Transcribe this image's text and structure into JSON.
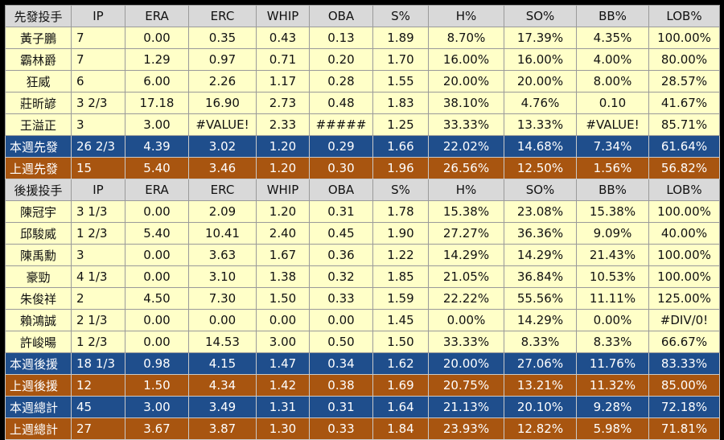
{
  "headers": [
    "IP",
    "ERA",
    "ERC",
    "WHIP",
    "OBA",
    "S%",
    "H%",
    "SO%",
    "BB%",
    "LOB%"
  ],
  "sections": [
    {
      "title": "先發投手",
      "players": [
        {
          "name": "黃子鵬",
          "stats": [
            "7",
            "0.00",
            "0.35",
            "0.43",
            "0.13",
            "1.89",
            "8.70%",
            "17.39%",
            "4.35%",
            "100.00%"
          ]
        },
        {
          "name": "霸林爵",
          "stats": [
            "7",
            "1.29",
            "0.97",
            "0.71",
            "0.20",
            "1.70",
            "16.00%",
            "16.00%",
            "4.00%",
            "80.00%"
          ]
        },
        {
          "name": "狂威",
          "stats": [
            "6",
            "6.00",
            "2.26",
            "1.17",
            "0.28",
            "1.55",
            "20.00%",
            "20.00%",
            "8.00%",
            "28.57%"
          ]
        },
        {
          "name": "莊昕諺",
          "stats": [
            "3 2/3",
            "17.18",
            "16.90",
            "2.73",
            "0.48",
            "1.83",
            "38.10%",
            "4.76%",
            "0.10",
            "41.67%"
          ]
        },
        {
          "name": "王溢正",
          "stats": [
            "3",
            "3.00",
            "#VALUE!",
            "2.33",
            "#####",
            "1.25",
            "33.33%",
            "13.33%",
            "#VALUE!",
            "85.71%"
          ]
        }
      ],
      "totals": [
        {
          "kind": "this",
          "name": "本週先發",
          "stats": [
            "26 2/3",
            "4.39",
            "3.02",
            "1.20",
            "0.29",
            "1.66",
            "22.02%",
            "14.68%",
            "7.34%",
            "61.64%"
          ]
        },
        {
          "kind": "last",
          "name": "上週先發",
          "stats": [
            "15",
            "5.40",
            "3.46",
            "1.20",
            "0.30",
            "1.96",
            "26.56%",
            "12.50%",
            "1.56%",
            "56.82%"
          ]
        }
      ]
    },
    {
      "title": "後援投手",
      "players": [
        {
          "name": "陳冠宇",
          "stats": [
            "3 1/3",
            "0.00",
            "2.09",
            "1.20",
            "0.31",
            "1.78",
            "15.38%",
            "23.08%",
            "15.38%",
            "100.00%"
          ]
        },
        {
          "name": "邱駿威",
          "stats": [
            "1 2/3",
            "5.40",
            "10.41",
            "2.40",
            "0.45",
            "1.90",
            "27.27%",
            "36.36%",
            "9.09%",
            "40.00%"
          ]
        },
        {
          "name": "陳禹勳",
          "stats": [
            "3",
            "0.00",
            "3.63",
            "1.67",
            "0.36",
            "1.22",
            "14.29%",
            "14.29%",
            "21.43%",
            "100.00%"
          ]
        },
        {
          "name": "豪勁",
          "stats": [
            "4 1/3",
            "0.00",
            "3.10",
            "1.38",
            "0.32",
            "1.85",
            "21.05%",
            "36.84%",
            "10.53%",
            "100.00%"
          ]
        },
        {
          "name": "朱俊祥",
          "stats": [
            "2",
            "4.50",
            "7.30",
            "1.50",
            "0.33",
            "1.59",
            "22.22%",
            "55.56%",
            "11.11%",
            "125.00%"
          ]
        },
        {
          "name": "賴鴻誠",
          "stats": [
            "2 1/3",
            "0.00",
            "0.00",
            "0.00",
            "0.00",
            "1.45",
            "0.00%",
            "14.29%",
            "0.00%",
            "#DIV/0!"
          ]
        },
        {
          "name": "許峻暘",
          "stats": [
            "1 2/3",
            "0.00",
            "14.53",
            "3.00",
            "0.50",
            "1.50",
            "33.33%",
            "8.33%",
            "8.33%",
            "66.67%"
          ]
        }
      ],
      "totals": [
        {
          "kind": "this",
          "name": "本週後援",
          "stats": [
            "18 1/3",
            "0.98",
            "4.15",
            "1.47",
            "0.34",
            "1.62",
            "20.00%",
            "27.06%",
            "11.76%",
            "83.33%"
          ]
        },
        {
          "kind": "last",
          "name": "上週後援",
          "stats": [
            "12",
            "1.50",
            "4.34",
            "1.42",
            "0.38",
            "1.69",
            "20.75%",
            "13.21%",
            "11.32%",
            "85.00%"
          ]
        },
        {
          "kind": "this",
          "name": "本週總計",
          "stats": [
            "45",
            "3.00",
            "3.49",
            "1.31",
            "0.31",
            "1.64",
            "21.13%",
            "20.10%",
            "9.28%",
            "72.18%"
          ]
        },
        {
          "kind": "last",
          "name": "上週總計",
          "stats": [
            "27",
            "3.67",
            "3.87",
            "1.30",
            "0.33",
            "1.84",
            "23.93%",
            "12.82%",
            "5.98%",
            "71.81%"
          ]
        }
      ]
    }
  ],
  "colors": {
    "this_week": "#1f4e8c",
    "last_week": "#a85510",
    "row_bg": "#ffffc8",
    "header_bg": "#d9d9d9"
  }
}
